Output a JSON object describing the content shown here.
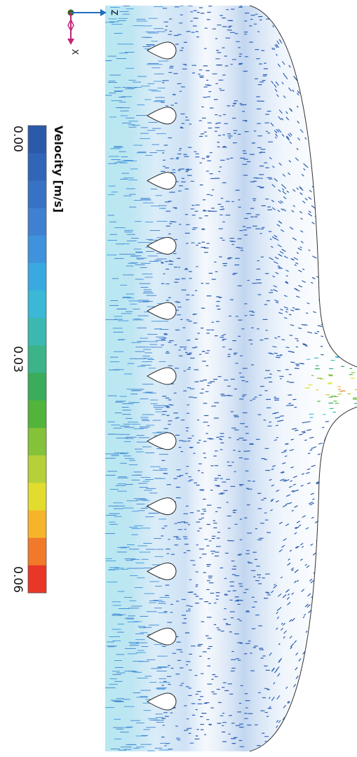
{
  "chart_data": {
    "type": "heatmap",
    "plot": "velocity vector field",
    "colorbar": {
      "title": "Velocity [m/s]",
      "range": [
        0.0,
        0.06
      ],
      "tick_labels": [
        "0.00",
        "0.03",
        "0.06"
      ],
      "tick_values": [
        0.0,
        0.03,
        0.06
      ],
      "bins": 17,
      "colors": [
        "#2b5aaa",
        "#3165b8",
        "#3872c4",
        "#3f80d0",
        "#3f93dc",
        "#3aa9e2",
        "#3ab8d6",
        "#3bb8b0",
        "#3ab488",
        "#3aac5a",
        "#52b43a",
        "#84c23a",
        "#b6d03a",
        "#e2dc2f",
        "#f6b42b",
        "#f07a2a",
        "#e83628"
      ]
    },
    "axes_triad": {
      "horizontal_axis_label": "Z",
      "vertical_axis_label": "X"
    },
    "obstacle_count": 11,
    "inlet_peak_velocity": 0.06
  }
}
